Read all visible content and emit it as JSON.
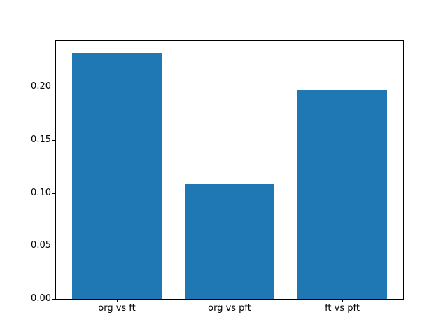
{
  "figure": {
    "background": "#ffffff"
  },
  "chart_data": {
    "type": "bar",
    "categories": [
      "org vs ft",
      "org vs pft",
      "ft vs pft"
    ],
    "values": [
      0.232,
      0.108,
      0.197
    ],
    "title": "",
    "xlabel": "",
    "ylabel": "",
    "xlim": [
      -0.54,
      2.54
    ],
    "ylim": [
      0,
      0.2436
    ],
    "yticks": [
      0,
      0.05,
      0.1,
      0.15,
      0.2
    ],
    "ytick_labels": [
      "0.00",
      "0.05",
      "0.10",
      "0.15",
      "0.20"
    ],
    "bar_width_fraction": 0.8,
    "bar_color": "#1f77b4",
    "axis_color": "#000000",
    "grid": false,
    "legend": "none"
  }
}
